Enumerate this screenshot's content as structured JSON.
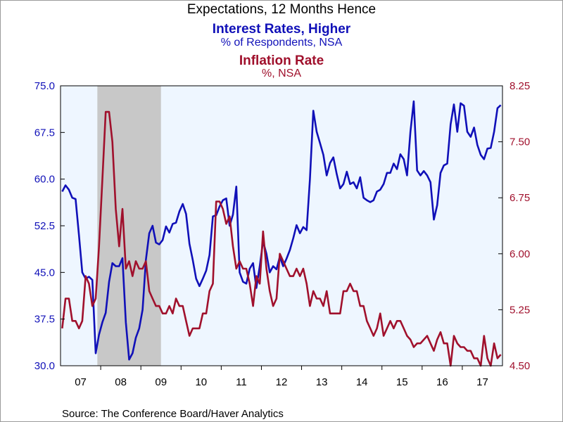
{
  "header": {
    "title": "Expectations, 12 Months Hence",
    "series1_title": "Interest Rates, Higher",
    "series1_subtitle": "% of Respondents, NSA",
    "series2_title": "Inflation Rate",
    "series2_subtitle": "%, NSA"
  },
  "footer": {
    "source": "Source:  The Conference Board/Haver Analytics"
  },
  "colors": {
    "series1": "#1010b8",
    "series2": "#a0102c",
    "plot_bg": "#eef6ff",
    "recession": "#c8c8c8"
  },
  "chart_data": {
    "type": "line",
    "x_start": "2007-01",
    "x_end": "2017-12",
    "x_tick_labels": [
      "07",
      "08",
      "09",
      "10",
      "11",
      "12",
      "13",
      "14",
      "15",
      "16",
      "17"
    ],
    "recession": {
      "start": "2007-12",
      "end": "2009-06"
    },
    "left_axis": {
      "ylim": [
        30.0,
        75.0
      ],
      "ticks": [
        "30.0",
        "37.5",
        "45.0",
        "52.5",
        "60.0",
        "67.5",
        "75.0"
      ]
    },
    "right_axis": {
      "ylim": [
        4.5,
        8.25
      ],
      "ticks": [
        "4.50",
        "5.25",
        "6.00",
        "6.75",
        "7.50",
        "8.25"
      ]
    },
    "grid": false,
    "series": [
      {
        "name": "Interest Rates, Higher",
        "axis": "left",
        "points": [
          [
            "2007-01",
            58
          ],
          [
            "2007-02",
            59
          ],
          [
            "2007-03",
            58.3
          ],
          [
            "2007-04",
            57
          ],
          [
            "2007-05",
            56.8
          ],
          [
            "2007-06",
            51
          ],
          [
            "2007-07",
            45
          ],
          [
            "2007-08",
            44
          ],
          [
            "2007-09",
            44.3
          ],
          [
            "2007-10",
            43.8
          ],
          [
            "2007-11",
            32
          ],
          [
            "2007-12",
            35
          ],
          [
            "2008-01",
            37
          ],
          [
            "2008-02",
            38.5
          ],
          [
            "2008-03",
            43.5
          ],
          [
            "2008-04",
            46.5
          ],
          [
            "2008-05",
            46
          ],
          [
            "2008-06",
            46
          ],
          [
            "2008-07",
            47.3
          ],
          [
            "2008-08",
            37
          ],
          [
            "2008-09",
            31
          ],
          [
            "2008-10",
            32
          ],
          [
            "2008-11",
            34.5
          ],
          [
            "2008-12",
            36
          ],
          [
            "2009-01",
            39
          ],
          [
            "2009-02",
            47
          ],
          [
            "2009-03",
            51.3
          ],
          [
            "2009-04",
            52.5
          ],
          [
            "2009-05",
            49.8
          ],
          [
            "2009-06",
            49.5
          ],
          [
            "2009-07",
            50.2
          ],
          [
            "2009-08",
            52.4
          ],
          [
            "2009-09",
            51.4
          ],
          [
            "2009-10",
            52.8
          ],
          [
            "2009-11",
            53
          ],
          [
            "2009-12",
            54.8
          ],
          [
            "2010-01",
            56
          ],
          [
            "2010-02",
            54.4
          ],
          [
            "2010-03",
            49.6
          ],
          [
            "2010-04",
            47
          ],
          [
            "2010-05",
            44
          ],
          [
            "2010-06",
            42.8
          ],
          [
            "2010-07",
            44
          ],
          [
            "2010-08",
            45.3
          ],
          [
            "2010-09",
            47.8
          ],
          [
            "2010-10",
            54
          ],
          [
            "2010-11",
            54.2
          ],
          [
            "2010-12",
            55.6
          ],
          [
            "2011-01",
            56.6
          ],
          [
            "2011-02",
            56.9
          ],
          [
            "2011-03",
            52.5
          ],
          [
            "2011-04",
            54.3
          ],
          [
            "2011-05",
            58.8
          ],
          [
            "2011-06",
            45
          ],
          [
            "2011-07",
            43.5
          ],
          [
            "2011-08",
            43.2
          ],
          [
            "2011-09",
            45.6
          ],
          [
            "2011-10",
            46.5
          ],
          [
            "2011-11",
            42.5
          ],
          [
            "2011-12",
            46
          ],
          [
            "2012-01",
            50
          ],
          [
            "2012-02",
            48
          ],
          [
            "2012-03",
            45
          ],
          [
            "2012-04",
            46
          ],
          [
            "2012-05",
            45.5
          ],
          [
            "2012-06",
            47.5
          ],
          [
            "2012-07",
            46
          ],
          [
            "2012-08",
            47.2
          ],
          [
            "2012-09",
            48.6
          ],
          [
            "2012-10",
            50.5
          ],
          [
            "2012-11",
            52.6
          ],
          [
            "2012-12",
            51.3
          ],
          [
            "2013-01",
            52.3
          ],
          [
            "2013-02",
            51.8
          ],
          [
            "2013-03",
            60
          ],
          [
            "2013-04",
            71
          ],
          [
            "2013-05",
            67.6
          ],
          [
            "2013-06",
            65.8
          ],
          [
            "2013-07",
            63.9
          ],
          [
            "2013-08",
            60.6
          ],
          [
            "2013-09",
            62.6
          ],
          [
            "2013-10",
            63.5
          ],
          [
            "2013-11",
            60.8
          ],
          [
            "2013-12",
            58.5
          ],
          [
            "2014-01",
            59.2
          ],
          [
            "2014-02",
            61.2
          ],
          [
            "2014-03",
            59.2
          ],
          [
            "2014-04",
            59.5
          ],
          [
            "2014-05",
            58.5
          ],
          [
            "2014-06",
            60.3
          ],
          [
            "2014-07",
            57
          ],
          [
            "2014-08",
            56.6
          ],
          [
            "2014-09",
            56.3
          ],
          [
            "2014-10",
            56.6
          ],
          [
            "2014-11",
            58
          ],
          [
            "2014-12",
            58.3
          ],
          [
            "2015-01",
            59.2
          ],
          [
            "2015-02",
            61
          ],
          [
            "2015-03",
            61
          ],
          [
            "2015-04",
            62.5
          ],
          [
            "2015-05",
            61.6
          ],
          [
            "2015-06",
            64
          ],
          [
            "2015-07",
            63.2
          ],
          [
            "2015-08",
            60.6
          ],
          [
            "2015-09",
            67.6
          ],
          [
            "2015-10",
            72.5
          ],
          [
            "2015-11",
            61.4
          ],
          [
            "2015-12",
            60.6
          ],
          [
            "2016-01",
            61.3
          ],
          [
            "2016-02",
            60.6
          ],
          [
            "2016-03",
            59.5
          ],
          [
            "2016-04",
            53.5
          ],
          [
            "2016-05",
            55.8
          ],
          [
            "2016-06",
            61
          ],
          [
            "2016-07",
            62.2
          ],
          [
            "2016-08",
            62.5
          ],
          [
            "2016-09",
            68.8
          ],
          [
            "2016-10",
            72
          ],
          [
            "2016-11",
            67.6
          ],
          [
            "2016-12",
            72.2
          ],
          [
            "2017-01",
            71.8
          ],
          [
            "2017-02",
            67.6
          ],
          [
            "2017-03",
            66.8
          ],
          [
            "2017-04",
            68.3
          ],
          [
            "2017-05",
            65.5
          ],
          [
            "2017-06",
            63.9
          ],
          [
            "2017-07",
            63.2
          ],
          [
            "2017-08",
            64.9
          ],
          [
            "2017-09",
            65
          ],
          [
            "2017-10",
            67.6
          ],
          [
            "2017-11",
            71.4
          ],
          [
            "2017-12",
            71.9
          ]
        ]
      },
      {
        "name": "Inflation Rate",
        "axis": "right",
        "points": [
          [
            "2007-01",
            5.0
          ],
          [
            "2007-02",
            5.4
          ],
          [
            "2007-03",
            5.4
          ],
          [
            "2007-04",
            5.1
          ],
          [
            "2007-05",
            5.1
          ],
          [
            "2007-06",
            5.0
          ],
          [
            "2007-07",
            5.1
          ],
          [
            "2007-08",
            5.7
          ],
          [
            "2007-09",
            5.6
          ],
          [
            "2007-10",
            5.3
          ],
          [
            "2007-11",
            5.4
          ],
          [
            "2007-12",
            6.1
          ],
          [
            "2008-01",
            7.0
          ],
          [
            "2008-02",
            7.9
          ],
          [
            "2008-03",
            7.9
          ],
          [
            "2008-04",
            7.5
          ],
          [
            "2008-05",
            6.6
          ],
          [
            "2008-06",
            6.1
          ],
          [
            "2008-07",
            6.6
          ],
          [
            "2008-08",
            5.8
          ],
          [
            "2008-09",
            5.9
          ],
          [
            "2008-10",
            5.7
          ],
          [
            "2008-11",
            5.9
          ],
          [
            "2008-12",
            5.8
          ],
          [
            "2009-01",
            5.8
          ],
          [
            "2009-02",
            5.9
          ],
          [
            "2009-03",
            5.5
          ],
          [
            "2009-04",
            5.4
          ],
          [
            "2009-05",
            5.3
          ],
          [
            "2009-06",
            5.3
          ],
          [
            "2009-07",
            5.2
          ],
          [
            "2009-08",
            5.2
          ],
          [
            "2009-09",
            5.3
          ],
          [
            "2009-10",
            5.2
          ],
          [
            "2009-11",
            5.4
          ],
          [
            "2009-12",
            5.3
          ],
          [
            "2010-01",
            5.3
          ],
          [
            "2010-02",
            5.1
          ],
          [
            "2010-03",
            4.9
          ],
          [
            "2010-04",
            5.0
          ],
          [
            "2010-05",
            5.0
          ],
          [
            "2010-06",
            5.0
          ],
          [
            "2010-07",
            5.2
          ],
          [
            "2010-08",
            5.2
          ],
          [
            "2010-09",
            5.5
          ],
          [
            "2010-10",
            5.6
          ],
          [
            "2010-11",
            6.7
          ],
          [
            "2010-12",
            6.7
          ],
          [
            "2011-01",
            6.6
          ],
          [
            "2011-02",
            6.4
          ],
          [
            "2011-03",
            6.5
          ],
          [
            "2011-04",
            6.1
          ],
          [
            "2011-05",
            5.8
          ],
          [
            "2011-06",
            5.9
          ],
          [
            "2011-07",
            5.8
          ],
          [
            "2011-08",
            5.8
          ],
          [
            "2011-09",
            5.6
          ],
          [
            "2011-10",
            5.3
          ],
          [
            "2011-11",
            5.7
          ],
          [
            "2011-12",
            5.6
          ],
          [
            "2012-01",
            6.3
          ],
          [
            "2012-02",
            5.8
          ],
          [
            "2012-03",
            5.5
          ],
          [
            "2012-04",
            5.3
          ],
          [
            "2012-05",
            5.4
          ],
          [
            "2012-06",
            6.0
          ],
          [
            "2012-07",
            5.9
          ],
          [
            "2012-08",
            5.8
          ],
          [
            "2012-09",
            5.7
          ],
          [
            "2012-10",
            5.7
          ],
          [
            "2012-11",
            5.8
          ],
          [
            "2012-12",
            5.7
          ],
          [
            "2013-01",
            5.8
          ],
          [
            "2013-02",
            5.6
          ],
          [
            "2013-03",
            5.3
          ],
          [
            "2013-04",
            5.5
          ],
          [
            "2013-05",
            5.4
          ],
          [
            "2013-06",
            5.4
          ],
          [
            "2013-07",
            5.3
          ],
          [
            "2013-08",
            5.5
          ],
          [
            "2013-09",
            5.2
          ],
          [
            "2013-10",
            5.2
          ],
          [
            "2013-11",
            5.2
          ],
          [
            "2013-12",
            5.2
          ],
          [
            "2014-01",
            5.5
          ],
          [
            "2014-02",
            5.5
          ],
          [
            "2014-03",
            5.6
          ],
          [
            "2014-04",
            5.5
          ],
          [
            "2014-05",
            5.5
          ],
          [
            "2014-06",
            5.3
          ],
          [
            "2014-07",
            5.3
          ],
          [
            "2014-08",
            5.1
          ],
          [
            "2014-09",
            5.0
          ],
          [
            "2014-10",
            4.9
          ],
          [
            "2014-11",
            5.0
          ],
          [
            "2014-12",
            5.2
          ],
          [
            "2015-01",
            4.9
          ],
          [
            "2015-02",
            5.0
          ],
          [
            "2015-03",
            5.1
          ],
          [
            "2015-04",
            5.0
          ],
          [
            "2015-05",
            5.1
          ],
          [
            "2015-06",
            5.1
          ],
          [
            "2015-07",
            5.0
          ],
          [
            "2015-08",
            4.9
          ],
          [
            "2015-09",
            4.85
          ],
          [
            "2015-10",
            4.75
          ],
          [
            "2015-11",
            4.8
          ],
          [
            "2015-12",
            4.8
          ],
          [
            "2016-01",
            4.85
          ],
          [
            "2016-02",
            4.9
          ],
          [
            "2016-03",
            4.8
          ],
          [
            "2016-04",
            4.7
          ],
          [
            "2016-05",
            4.85
          ],
          [
            "2016-06",
            4.95
          ],
          [
            "2016-07",
            4.8
          ],
          [
            "2016-08",
            4.8
          ],
          [
            "2016-09",
            4.5
          ],
          [
            "2016-10",
            4.9
          ],
          [
            "2016-11",
            4.8
          ],
          [
            "2016-12",
            4.75
          ],
          [
            "2017-01",
            4.75
          ],
          [
            "2017-02",
            4.7
          ],
          [
            "2017-03",
            4.7
          ],
          [
            "2017-04",
            4.6
          ],
          [
            "2017-05",
            4.6
          ],
          [
            "2017-06",
            4.5
          ],
          [
            "2017-07",
            4.9
          ],
          [
            "2017-08",
            4.6
          ],
          [
            "2017-09",
            4.5
          ],
          [
            "2017-10",
            4.8
          ],
          [
            "2017-11",
            4.6
          ],
          [
            "2017-12",
            4.65
          ]
        ]
      }
    ]
  }
}
